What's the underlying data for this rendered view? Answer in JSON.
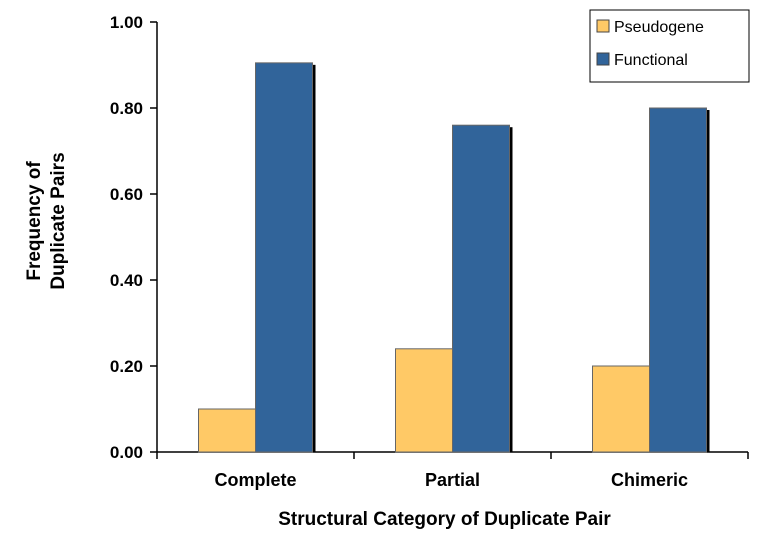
{
  "chart_data": {
    "type": "bar",
    "title": "",
    "categories": [
      "Complete",
      "Partial",
      "Chimeric"
    ],
    "series": [
      {
        "name": "Pseudogene",
        "color": "#FFC966",
        "values": [
          0.1,
          0.24,
          0.2
        ]
      },
      {
        "name": "Functional",
        "color": "#31649A",
        "values": [
          0.905,
          0.76,
          0.8
        ]
      }
    ],
    "xlabel": "Structural Category of Duplicate Pair",
    "ylabel": [
      "Frequency of",
      "Duplicate Pairs"
    ],
    "ylim": [
      0,
      1.0
    ],
    "yticks": [
      "0.00",
      "0.20",
      "0.40",
      "0.60",
      "0.80",
      "1.00"
    ],
    "grid": false,
    "legend_position": "top-right"
  }
}
